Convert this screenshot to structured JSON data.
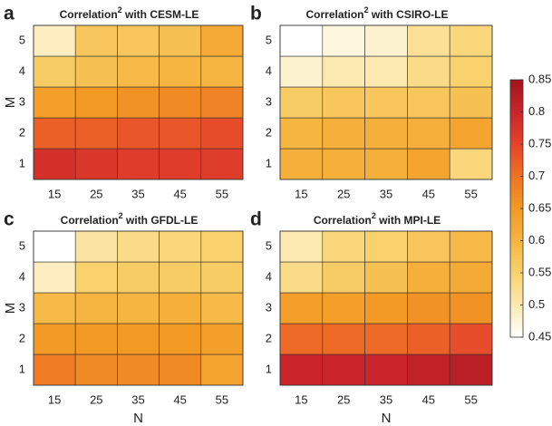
{
  "chart_data": [
    {
      "type": "heatmap",
      "letter": "a",
      "title": "Correlation",
      "title_superscript": "2",
      "title_suffix": " with CESM-LE",
      "ylabel": "M",
      "x": [
        15,
        25,
        35,
        45,
        55
      ],
      "y": [
        1,
        2,
        3,
        4,
        5
      ],
      "values": [
        [
          0.78,
          0.77,
          0.76,
          0.76,
          0.76
        ],
        [
          0.72,
          0.72,
          0.73,
          0.73,
          0.74
        ],
        [
          0.64,
          0.65,
          0.66,
          0.67,
          0.68
        ],
        [
          0.56,
          0.58,
          0.59,
          0.6,
          0.6
        ],
        [
          0.49,
          0.57,
          0.57,
          0.58,
          0.62
        ]
      ]
    },
    {
      "type": "heatmap",
      "letter": "b",
      "title": "Correlation",
      "title_superscript": "2",
      "title_suffix": " with CSIRO-LE",
      "x": [
        15,
        25,
        35,
        45,
        55
      ],
      "y": [
        1,
        2,
        3,
        4,
        5
      ],
      "values": [
        [
          0.61,
          0.61,
          0.61,
          0.63,
          0.54
        ],
        [
          0.6,
          0.61,
          0.61,
          0.61,
          0.63
        ],
        [
          0.56,
          0.57,
          0.57,
          0.57,
          0.58
        ],
        [
          0.48,
          0.5,
          0.5,
          0.53,
          0.55
        ],
        [
          0.45,
          0.47,
          0.48,
          0.52,
          0.54
        ]
      ]
    },
    {
      "type": "heatmap",
      "letter": "c",
      "title": "Correlation",
      "title_superscript": "2",
      "title_suffix": " with GFDL-LE",
      "ylabel": "M",
      "xlabel": "N",
      "x": [
        15,
        25,
        35,
        45,
        55
      ],
      "y": [
        1,
        2,
        3,
        4,
        5
      ],
      "values": [
        [
          0.69,
          0.67,
          0.67,
          0.67,
          0.63
        ],
        [
          0.65,
          0.65,
          0.65,
          0.65,
          0.64
        ],
        [
          0.59,
          0.6,
          0.6,
          0.61,
          0.59
        ],
        [
          0.49,
          0.55,
          0.56,
          0.56,
          0.56
        ],
        [
          0.45,
          0.51,
          0.53,
          0.54,
          0.55
        ]
      ]
    },
    {
      "type": "heatmap",
      "letter": "d",
      "title": "Correlation",
      "title_superscript": "2",
      "title_suffix": " with MPI-LE",
      "xlabel": "N",
      "x": [
        15,
        25,
        35,
        45,
        55
      ],
      "y": [
        1,
        2,
        3,
        4,
        5
      ],
      "values": [
        [
          0.8,
          0.8,
          0.8,
          0.81,
          0.82
        ],
        [
          0.71,
          0.71,
          0.71,
          0.72,
          0.74
        ],
        [
          0.64,
          0.64,
          0.65,
          0.66,
          0.66
        ],
        [
          0.53,
          0.56,
          0.58,
          0.61,
          0.62
        ],
        [
          0.5,
          0.54,
          0.55,
          0.57,
          0.59
        ]
      ]
    }
  ],
  "colorbar": {
    "lim": [
      0.45,
      0.85
    ],
    "ticks": [
      0.45,
      0.5,
      0.55,
      0.6,
      0.65,
      0.7,
      0.75,
      0.8,
      0.85
    ],
    "colormap": [
      "#ffffff",
      "#fce9b0",
      "#f9d26e",
      "#f6b440",
      "#f29a24",
      "#ee7325",
      "#e5432b",
      "#c9252a",
      "#a0151b"
    ]
  }
}
